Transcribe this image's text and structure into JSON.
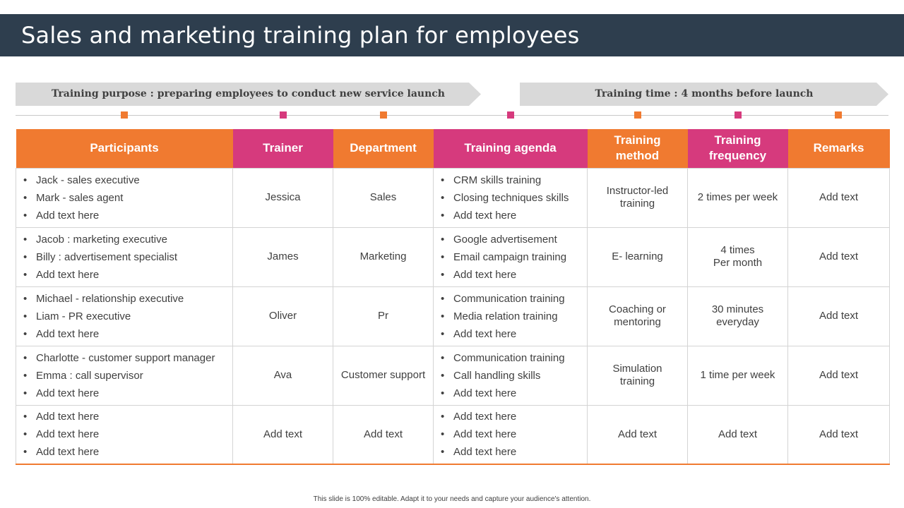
{
  "title": "Sales and marketing training plan for employees",
  "banner": {
    "purpose": "Training purpose : preparing employees to conduct new service launch",
    "time": "Training time : 4 months before launch"
  },
  "colors": {
    "orange": "#f07a30",
    "pink": "#d63a7d",
    "title_bar": "#2e3e4e",
    "arrow": "#d9d9d9"
  },
  "table": {
    "headers": {
      "participants": "Participants",
      "trainer": "Trainer",
      "department": "Department",
      "agenda": "Training agenda",
      "method_1": "Training",
      "method_2": "method",
      "frequency_1": "Training",
      "frequency_2": "frequency",
      "remarks": "Remarks"
    },
    "rows": [
      {
        "participants": [
          "Jack - sales executive",
          "Mark - sales agent",
          "Add text here"
        ],
        "trainer": "Jessica",
        "department": "Sales",
        "agenda": [
          "CRM skills training",
          "Closing techniques skills",
          "Add text here"
        ],
        "method_1": "Instructor-led",
        "method_2": "training",
        "frequency_1": "2 times per week",
        "frequency_2": "",
        "remarks": "Add text"
      },
      {
        "participants": [
          "Jacob : marketing executive",
          "Billy : advertisement specialist",
          "Add text here"
        ],
        "trainer": "James",
        "department": "Marketing",
        "agenda": [
          "Google advertisement",
          "Email campaign training",
          "Add text here"
        ],
        "method_1": "E- learning",
        "method_2": "",
        "frequency_1": "4 times",
        "frequency_2": "Per month",
        "remarks": "Add text"
      },
      {
        "participants": [
          "Michael  - relationship executive",
          "Liam - PR executive",
          "Add text here"
        ],
        "trainer": "Oliver",
        "department": "Pr",
        "agenda": [
          "Communication training",
          "Media relation training",
          "Add text here"
        ],
        "method_1": "Coaching or",
        "method_2": "mentoring",
        "frequency_1": "30 minutes",
        "frequency_2": "everyday",
        "remarks": "Add text"
      },
      {
        "participants": [
          "Charlotte - customer support manager",
          "Emma : call supervisor",
          "Add text here"
        ],
        "trainer": "Ava",
        "department": "Customer support",
        "agenda": [
          "Communication training",
          "Call handling  skills",
          "Add text here"
        ],
        "method_1": "Simulation",
        "method_2": "training",
        "frequency_1": "1 time per week",
        "frequency_2": "",
        "remarks": "Add text"
      },
      {
        "participants": [
          "Add text here",
          "Add text here",
          "Add text here"
        ],
        "trainer": "Add text",
        "department": "Add text",
        "agenda": [
          "Add text here",
          "Add text here",
          "Add text here"
        ],
        "method_1": "Add text",
        "method_2": "",
        "frequency_1": "Add text",
        "frequency_2": "",
        "remarks": "Add text"
      }
    ]
  },
  "footer": "This slide is 100% editable. Adapt it to your needs and capture your audience's attention."
}
